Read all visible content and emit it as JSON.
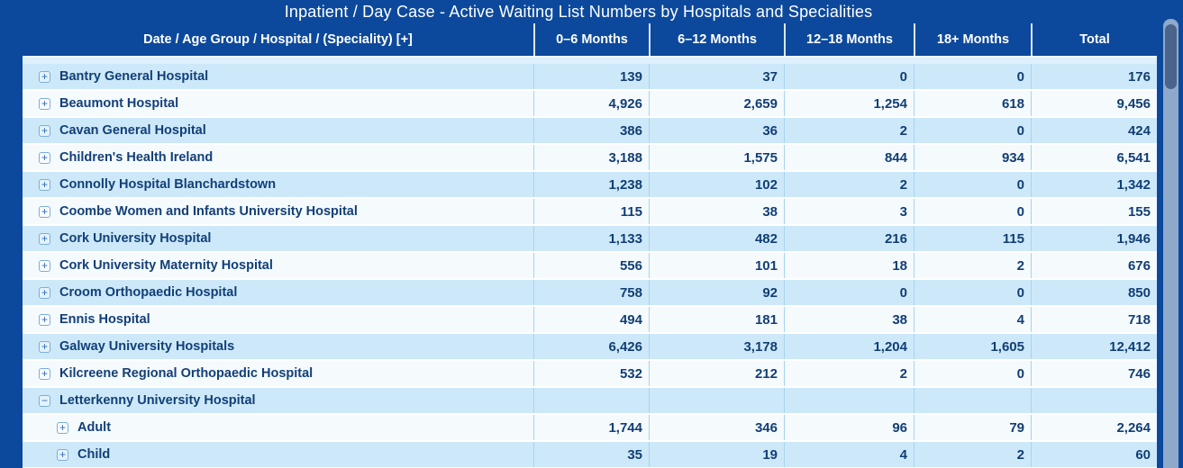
{
  "title": "Inpatient / Day Case - Active Waiting List Numbers by Hospitals and Specialities",
  "header": {
    "group_label": "Date / Age Group / Hospital / (Speciality) [+]",
    "months": [
      "0–6 Months",
      "6–12 Months",
      "12–18 Months",
      "18+ Months",
      "Total"
    ]
  },
  "rows": [
    {
      "name": "Bantry General Hospital",
      "level": 0,
      "expanded": false,
      "values": [
        "139",
        "37",
        "0",
        "0",
        "176"
      ]
    },
    {
      "name": "Beaumont Hospital",
      "level": 0,
      "expanded": false,
      "values": [
        "4,926",
        "2,659",
        "1,254",
        "618",
        "9,456"
      ]
    },
    {
      "name": "Cavan General Hospital",
      "level": 0,
      "expanded": false,
      "values": [
        "386",
        "36",
        "2",
        "0",
        "424"
      ]
    },
    {
      "name": "Children's Health Ireland",
      "level": 0,
      "expanded": false,
      "values": [
        "3,188",
        "1,575",
        "844",
        "934",
        "6,541"
      ]
    },
    {
      "name": "Connolly Hospital Blanchardstown",
      "level": 0,
      "expanded": false,
      "values": [
        "1,238",
        "102",
        "2",
        "0",
        "1,342"
      ]
    },
    {
      "name": "Coombe Women and Infants University Hospital",
      "level": 0,
      "expanded": false,
      "values": [
        "115",
        "38",
        "3",
        "0",
        "155"
      ]
    },
    {
      "name": "Cork University Hospital",
      "level": 0,
      "expanded": false,
      "values": [
        "1,133",
        "482",
        "216",
        "115",
        "1,946"
      ]
    },
    {
      "name": "Cork University Maternity Hospital",
      "level": 0,
      "expanded": false,
      "values": [
        "556",
        "101",
        "18",
        "2",
        "676"
      ]
    },
    {
      "name": "Croom Orthopaedic Hospital",
      "level": 0,
      "expanded": false,
      "values": [
        "758",
        "92",
        "0",
        "0",
        "850"
      ]
    },
    {
      "name": "Ennis Hospital",
      "level": 0,
      "expanded": false,
      "values": [
        "494",
        "181",
        "38",
        "4",
        "718"
      ]
    },
    {
      "name": "Galway University Hospitals",
      "level": 0,
      "expanded": false,
      "values": [
        "6,426",
        "3,178",
        "1,204",
        "1,605",
        "12,412"
      ]
    },
    {
      "name": "Kilcreene Regional Orthopaedic Hospital",
      "level": 0,
      "expanded": false,
      "values": [
        "532",
        "212",
        "2",
        "0",
        "746"
      ]
    },
    {
      "name": "Letterkenny University Hospital",
      "level": 0,
      "expanded": true,
      "values": [
        "",
        "",
        "",
        "",
        ""
      ]
    },
    {
      "name": "Adult",
      "level": 1,
      "expanded": false,
      "values": [
        "1,744",
        "346",
        "96",
        "79",
        "2,264"
      ]
    },
    {
      "name": "Child",
      "level": 1,
      "expanded": false,
      "values": [
        "35",
        "19",
        "4",
        "2",
        "60"
      ]
    }
  ],
  "icons": {
    "expand": "plus-square-icon",
    "collapse": "minus-square-icon"
  },
  "colors": {
    "background": "#0c499c",
    "row_light": "#cde9f9",
    "row_white": "#f5fafd",
    "text_navy": "#123e75",
    "header_text": "#ffffff",
    "scroll_track": "#8fa9cb",
    "scroll_thumb": "#4a648c"
  }
}
